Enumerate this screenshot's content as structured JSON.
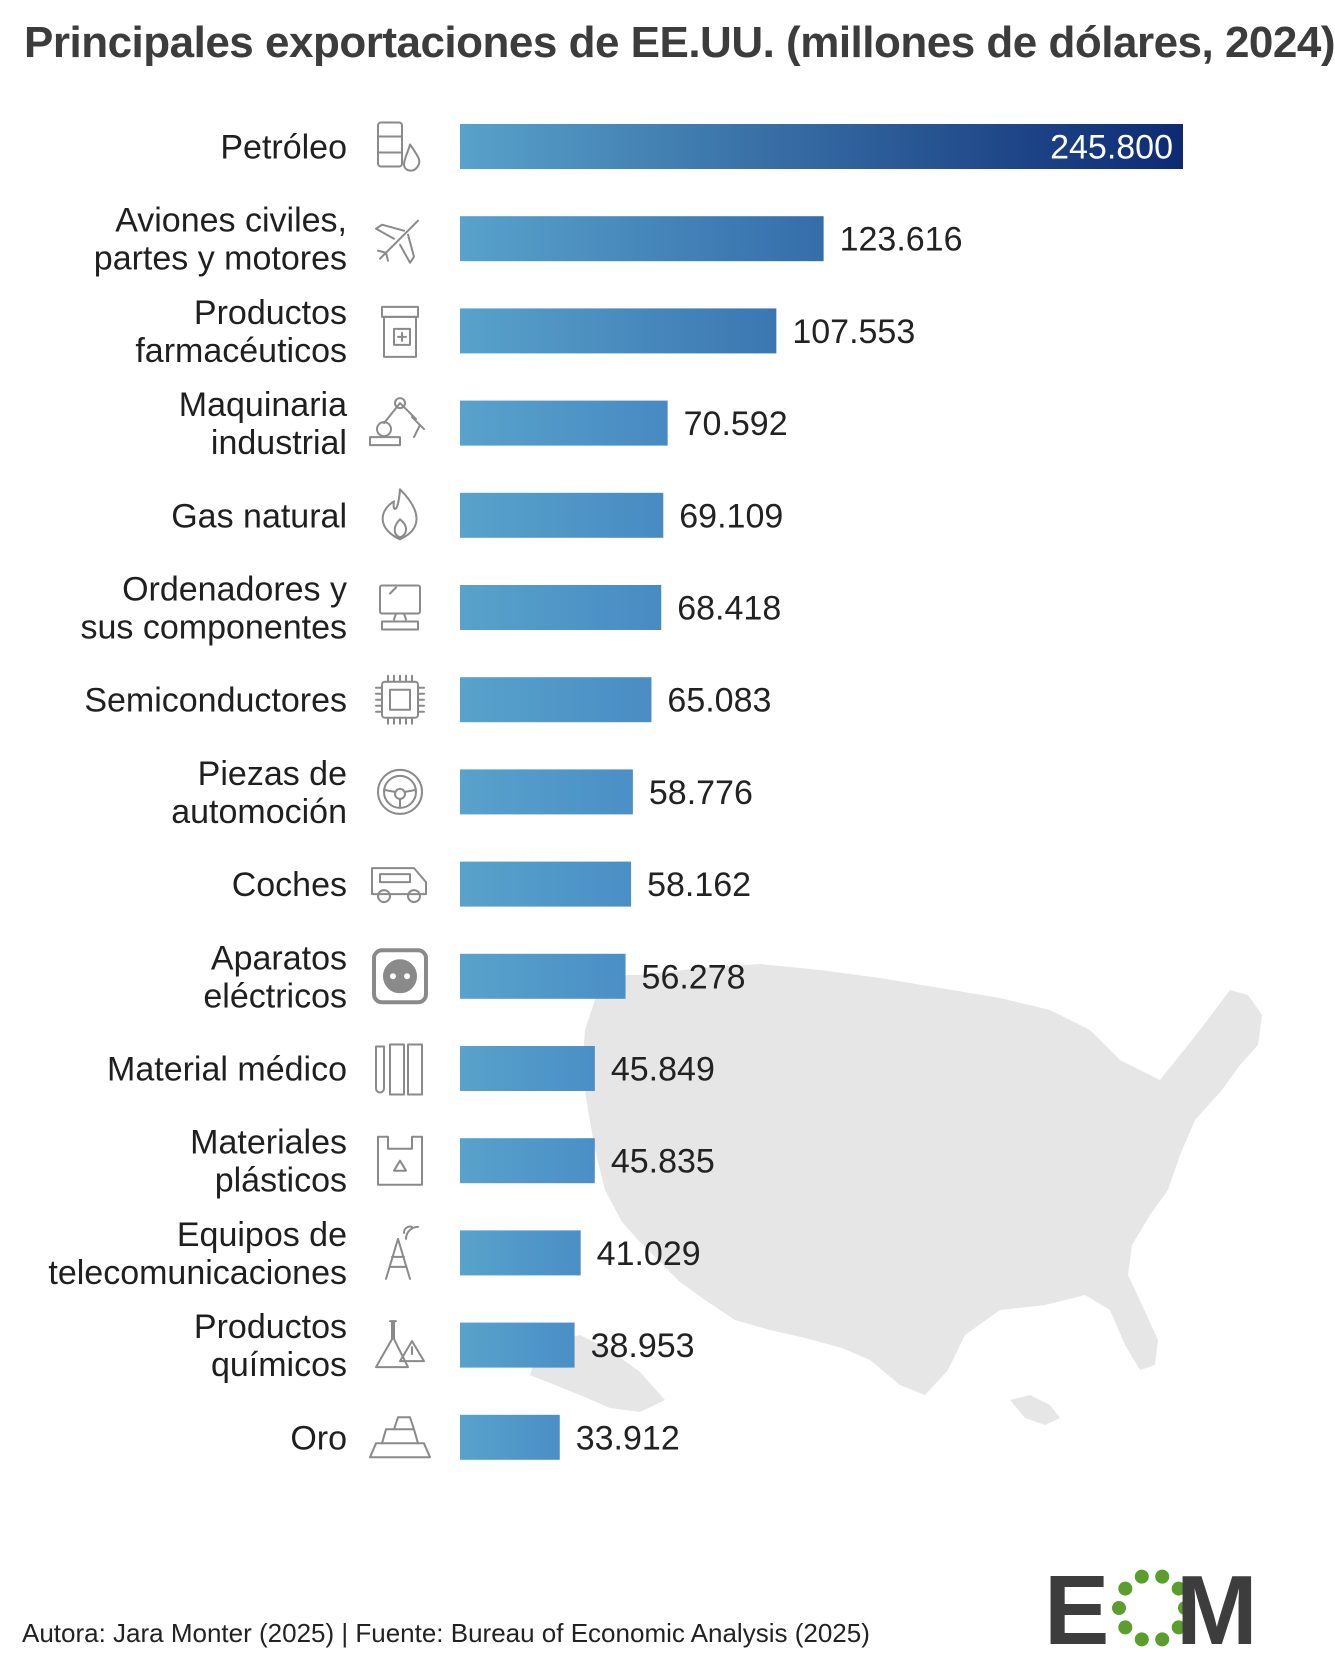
{
  "title": "Principales exportaciones de EE.UU. (millones de dólares, 2024)",
  "footer": "Autora: Jara Monter (2025) | Fuente: Bureau of Economic Analysis (2025)",
  "colors": {
    "bar_start": "#58a2cb",
    "bar_end_max": "#0d2a73",
    "map_fill": "#e6e6e6",
    "icon_stroke": "#8a8a8a",
    "logo_gray": "#3d3d3d",
    "logo_green": "#5b9e2e"
  },
  "logo": {
    "letters": [
      "E",
      "M"
    ],
    "icon": "ring-of-dots-icon"
  },
  "chart_data": {
    "type": "bar",
    "orientation": "horizontal",
    "title": "Principales exportaciones de EE.UU. (millones de dólares, 2024)",
    "xlim": [
      0,
      245800
    ],
    "grid": false,
    "categories": [
      [
        "Petróleo"
      ],
      [
        "Aviones civiles,",
        "partes y motores"
      ],
      [
        "Productos",
        "farmacéuticos"
      ],
      [
        "Maquinaria",
        "industrial"
      ],
      [
        "Gas natural"
      ],
      [
        "Ordenadores y",
        "sus componentes"
      ],
      [
        "Semiconductores"
      ],
      [
        "Piezas de",
        "automoción"
      ],
      [
        "Coches"
      ],
      [
        "Aparatos",
        "eléctricos"
      ],
      [
        "Material médico"
      ],
      [
        "Materiales",
        "plásticos"
      ],
      [
        "Equipos de",
        "telecomunicaciones"
      ],
      [
        "Productos",
        "químicos"
      ],
      [
        "Oro"
      ]
    ],
    "values": [
      245800,
      123616,
      107553,
      70592,
      69109,
      68418,
      65083,
      58776,
      58162,
      56278,
      45849,
      45835,
      41029,
      38953,
      33912
    ],
    "value_labels": [
      "245.800",
      "123.616",
      "107.553",
      "70.592",
      "69.109",
      "68.418",
      "65.083",
      "58.776",
      "58.162",
      "56.278",
      "45.849",
      "45.835",
      "41.029",
      "38.953",
      "33.912"
    ],
    "icons": [
      "oil-barrel-icon",
      "airplane-icon",
      "medicine-bottle-icon",
      "robotic-arm-icon",
      "flame-icon",
      "computer-icon",
      "chip-icon",
      "steering-wheel-icon",
      "van-icon",
      "power-socket-icon",
      "test-tubes-icon",
      "plastic-bag-icon",
      "antenna-tower-icon",
      "chemical-flask-icon",
      "gold-bars-icon"
    ]
  }
}
